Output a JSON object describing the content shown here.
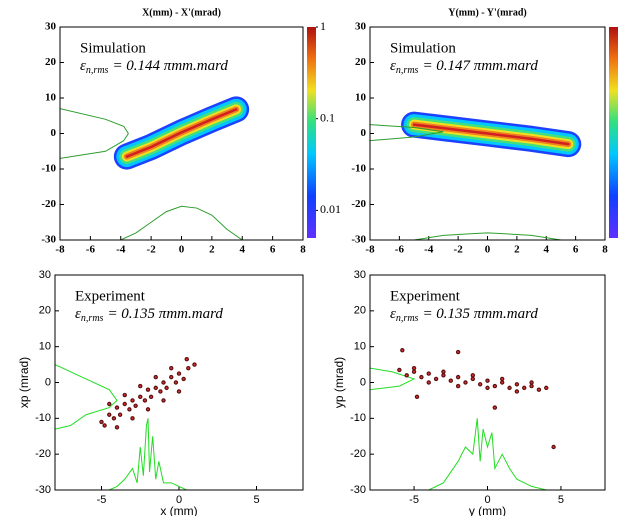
{
  "chart_data": [
    {
      "type": "density",
      "title": "X(mm) - X'(mrad)",
      "label": "Simulation",
      "emittance": {
        "symbol": "ε",
        "subscript": "n,rms",
        "value": "= 0.144 πmm.mard"
      },
      "xlim": [
        -8,
        8
      ],
      "xticks": [
        -8,
        -6,
        -4,
        -2,
        0,
        2,
        4,
        6,
        8
      ],
      "ylim": [
        -30,
        30
      ],
      "yticks": [
        -30,
        -20,
        -10,
        0,
        10,
        20,
        30
      ],
      "x": [
        -3.6,
        -2,
        0,
        2,
        3.6
      ],
      "values": [
        -6.5,
        -3.8,
        0.3,
        4,
        6.8
      ],
      "colorbar": true,
      "colorbar_log": true,
      "colorbar_lim": [
        0.005,
        1
      ],
      "colorbar_ticks": [
        1,
        0.1,
        0.01
      ],
      "profile_color": "#2e9e2e",
      "profiles": [
        {
          "x": [
            -4,
            -3,
            -2,
            -1,
            0,
            1,
            2,
            3,
            4
          ],
          "values": [
            -30,
            -28,
            -25,
            -22,
            -20.5,
            -21,
            -23,
            -27,
            -30
          ]
        },
        {
          "x": [
            -8,
            -5,
            -3.8,
            -3.5,
            -3.8,
            -5,
            -8
          ],
          "values": [
            7,
            4,
            2,
            0,
            -2,
            -5,
            -7
          ]
        }
      ]
    },
    {
      "type": "density",
      "title": "Y(mm) - Y'(mrad)",
      "label": "Simulation",
      "emittance": {
        "symbol": "ε",
        "subscript": "n,rms",
        "value": "= 0.147 πmm.mard"
      },
      "xlim": [
        -8,
        8
      ],
      "xticks": [
        -8,
        -6,
        -4,
        -2,
        0,
        2,
        4,
        6,
        8
      ],
      "ylim": [
        -30,
        30
      ],
      "yticks": [
        -30,
        -20,
        -10,
        0,
        10,
        20,
        30
      ],
      "x": [
        -5,
        -3,
        0,
        3,
        5.5
      ],
      "values": [
        2.5,
        1.5,
        0,
        -1.5,
        -3
      ],
      "colorbar": true,
      "colorbar_log": true,
      "profile_color": "#2e9e2e",
      "profiles": [
        {
          "x": [
            -5,
            -3,
            -1,
            0,
            1,
            3,
            5
          ],
          "values": [
            -30,
            -28.7,
            -28.2,
            -28,
            -28.2,
            -28.7,
            -30
          ]
        },
        {
          "x": [
            -8,
            -5,
            -3,
            -5,
            -8
          ],
          "values": [
            2.5,
            1.7,
            0.5,
            -1,
            -2
          ]
        }
      ]
    },
    {
      "type": "scatter",
      "label": "Experiment",
      "emittance": {
        "symbol": "ε",
        "subscript": "n,rms",
        "value": "= 0.135 πmm.mard"
      },
      "xlabel": "x (mm)",
      "ylabel": "xp (mrad)",
      "xlim": [
        -8,
        8
      ],
      "xticks": [
        -5,
        0,
        5
      ],
      "ylim": [
        -30,
        30
      ],
      "yticks": [
        -30,
        -20,
        -10,
        0,
        10,
        20,
        30
      ],
      "point_color": "#5a1010",
      "point_core": "#e03030",
      "x": [
        -5,
        -4.8,
        -4.5,
        -4.2,
        -4,
        -3.8,
        -3.5,
        -3.2,
        -3,
        -2.8,
        -2.5,
        -2.2,
        -2,
        -1.8,
        -1.5,
        -1.2,
        -1,
        -0.8,
        -0.5,
        -0.2,
        0,
        0.3,
        0.6,
        1,
        -4.5,
        -3.5,
        -2.5,
        -1.5,
        -0.5,
        0.5,
        -4,
        -3,
        -2,
        -1,
        0
      ],
      "values": [
        -11,
        -12,
        -9,
        -10,
        -7,
        -9,
        -6,
        -7.5,
        -5,
        -6.5,
        -4,
        -5,
        -2,
        -4,
        -1.5,
        -2.5,
        0,
        -1.5,
        1.5,
        0,
        2.5,
        1,
        4,
        5,
        -6,
        -3.5,
        -1,
        1.5,
        4,
        6.5,
        -12.5,
        -10,
        -7.5,
        -5,
        -2.5
      ],
      "profile_color": "#22dd22",
      "profiles": [
        {
          "x": [
            -4.5,
            -4,
            -3.5,
            -3,
            -2.7,
            -2.5,
            -2.3,
            -2.1,
            -2,
            -1.9,
            -1.7,
            -1.5,
            -1.3,
            -1,
            -0.5,
            0,
            0.5
          ],
          "values": [
            -30,
            -29,
            -27,
            -24,
            -28,
            -18,
            -26,
            -12,
            -10,
            -25,
            -15,
            -27,
            -22,
            -28,
            -28,
            -29,
            -30
          ]
        },
        {
          "x": [
            -8,
            -6,
            -4.5,
            -4,
            -4.5,
            -6,
            -7,
            -8
          ],
          "values": [
            5,
            1,
            -2,
            -5,
            -7,
            -9,
            -12,
            -13
          ]
        }
      ]
    },
    {
      "type": "scatter",
      "label": "Experiment",
      "emittance": {
        "symbol": "ε",
        "subscript": "n,rms",
        "value": "= 0.135 πmm.mard"
      },
      "xlabel": "y (mm)",
      "ylabel": "yp (mrad)",
      "xlim": [
        -8,
        8
      ],
      "xticks": [
        -5,
        0,
        5
      ],
      "ylim": [
        -30,
        30
      ],
      "yticks": [
        -30,
        -20,
        -10,
        0,
        10,
        20,
        30
      ],
      "point_color": "#5a1010",
      "point_core": "#e03030",
      "x": [
        -6,
        -5.5,
        -5,
        -4.5,
        -4,
        -3.5,
        -3,
        -2.5,
        -2,
        -1.5,
        -1,
        -0.5,
        0,
        0.5,
        1,
        1.5,
        2,
        2.5,
        3,
        3.5,
        4,
        -5,
        -3,
        -1,
        1,
        3,
        -4,
        -2,
        0,
        2,
        -5.8,
        -2,
        4.5,
        0.5,
        -4.8
      ],
      "values": [
        3.5,
        2,
        3,
        1.5,
        2.5,
        1,
        2,
        0.5,
        1.5,
        0,
        1,
        -0.5,
        0.5,
        -1,
        0,
        -1.5,
        -0.5,
        -1.5,
        -1,
        -2,
        -1.5,
        4,
        3,
        2,
        1,
        0,
        0,
        -1,
        -1.5,
        -2.5,
        9,
        8.5,
        -18,
        -7,
        -4
      ],
      "profile_color": "#22dd22",
      "profiles": [
        {
          "x": [
            -4,
            -3,
            -2.5,
            -2,
            -1.5,
            -1,
            -0.7,
            -0.5,
            -0.3,
            0,
            0.3,
            0.5,
            1,
            1.5,
            2,
            3,
            4
          ],
          "values": [
            -30,
            -28,
            -25,
            -22,
            -18,
            -20,
            -10,
            -22,
            -13,
            -18,
            -14,
            -24,
            -20,
            -24,
            -27,
            -29,
            -30
          ]
        },
        {
          "x": [
            -8,
            -6.5,
            -5,
            -6,
            -8
          ],
          "values": [
            4,
            3,
            1,
            -1,
            -2
          ]
        }
      ]
    }
  ]
}
